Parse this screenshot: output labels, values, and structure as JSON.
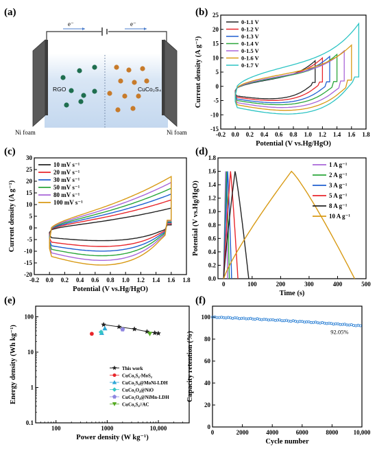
{
  "panels": {
    "a": {
      "label": "(a)",
      "electron_left": "e⁻",
      "electron_right": "e⁻",
      "left_electrode": "RGO",
      "right_electrode": "CuCo₂S₄",
      "left_foam": "Ni foam",
      "right_foam": "Ni foam",
      "colors": {
        "green": "#1f6e4f",
        "orange": "#c77b2b",
        "electrolyte": "#cfe0f3",
        "electrode": "#555555"
      }
    }
  },
  "chart_data": [
    {
      "id": "b",
      "label": "(b)",
      "type": "line",
      "xlabel": "Potential (V vs.Hg/HgO)",
      "ylabel": "Current density (A g⁻¹)",
      "xlim": [
        -0.2,
        1.8
      ],
      "ylim": [
        -15,
        25
      ],
      "xticks": [
        "-0.2",
        "0.0",
        "0.2",
        "0.4",
        "0.6",
        "0.8",
        "1.0",
        "1.2",
        "1.4",
        "1.6",
        "1.8"
      ],
      "yticks": [
        "-15",
        "-10",
        "-5",
        "0",
        "5",
        "10",
        "15",
        "20",
        "25"
      ],
      "legend_position": "top-left",
      "series": [
        {
          "name": "0-1.1 V",
          "color": "#222222",
          "vmax": 1.1,
          "top": 9.0,
          "bot": -4.4
        },
        {
          "name": "0-1.2 V",
          "color": "#e8262b",
          "vmax": 1.2,
          "top": 10.0,
          "bot": -5.0
        },
        {
          "name": "0-1.3 V",
          "color": "#1f5fd1",
          "vmax": 1.3,
          "top": 10.5,
          "bot": -5.8
        },
        {
          "name": "0-1.4 V",
          "color": "#2aa63a",
          "vmax": 1.4,
          "top": 11.2,
          "bot": -6.5
        },
        {
          "name": "0-1.5 V",
          "color": "#a865d8",
          "vmax": 1.5,
          "top": 12.5,
          "bot": -7.5
        },
        {
          "name": "0-1.6 V",
          "color": "#d89a14",
          "vmax": 1.6,
          "top": 14.5,
          "bot": -8.5
        },
        {
          "name": "0-1.7 V",
          "color": "#2cc4c4",
          "vmax": 1.7,
          "top": 22.0,
          "bot": -9.8
        }
      ]
    },
    {
      "id": "c",
      "label": "(c)",
      "type": "line",
      "xlabel": "Potential (V vs.Hg/HgO)",
      "ylabel": "Current density (A g⁻¹)",
      "xlim": [
        -0.2,
        1.8
      ],
      "ylim": [
        -20,
        30
      ],
      "xticks": [
        "-0.2",
        "0.0",
        "0.2",
        "0.4",
        "0.6",
        "0.8",
        "1.0",
        "1.2",
        "1.4",
        "1.6",
        "1.8"
      ],
      "yticks": [
        "-20",
        "-15",
        "-10",
        "-5",
        "0",
        "5",
        "10",
        "15",
        "20",
        "25",
        "30"
      ],
      "legend_position": "top-left",
      "series": [
        {
          "name": "10 mV s⁻¹",
          "color": "#222222",
          "vmax": 1.6,
          "top": 8.5,
          "bot": -5.5
        },
        {
          "name": "20 mV s⁻¹",
          "color": "#e8262b",
          "vmax": 1.6,
          "top": 12.0,
          "bot": -8.0
        },
        {
          "name": "30 mV s⁻¹",
          "color": "#1f5fd1",
          "vmax": 1.6,
          "top": 14.5,
          "bot": -10.0
        },
        {
          "name": "50 mV s⁻¹",
          "color": "#2aa63a",
          "vmax": 1.6,
          "top": 17.0,
          "bot": -12.0
        },
        {
          "name": "80 mV s⁻¹",
          "color": "#a865d8",
          "vmax": 1.6,
          "top": 19.5,
          "bot": -14.0
        },
        {
          "name": "100 mV s⁻¹",
          "color": "#d89a14",
          "vmax": 1.6,
          "top": 22.0,
          "bot": -16.0
        }
      ]
    },
    {
      "id": "d",
      "label": "(d)",
      "type": "line",
      "xlabel": "Time (s)",
      "ylabel": "Potential (V vs.Hg/HgO)",
      "xlim": [
        -20,
        500
      ],
      "ylim": [
        0.0,
        1.8
      ],
      "xticks": [
        "0",
        "100",
        "200",
        "300",
        "400",
        "500"
      ],
      "yticks": [
        "0.0",
        "0.2",
        "0.4",
        "0.6",
        "0.8",
        "1.0",
        "1.2",
        "1.4",
        "1.6",
        "1.8"
      ],
      "legend_position": "top-right",
      "series": [
        {
          "name": "1 A g⁻¹",
          "color": "#a865d8",
          "t_charge": 7,
          "t_end": 14
        },
        {
          "name": "2 A g⁻¹",
          "color": "#2aa63a",
          "t_charge": 10,
          "t_end": 20
        },
        {
          "name": "3 A g⁻¹",
          "color": "#1f5fd1",
          "t_charge": 14,
          "t_end": 28
        },
        {
          "name": "5 A g⁻¹",
          "color": "#e8262b",
          "t_charge": 24,
          "t_end": 50
        },
        {
          "name": "8 A g⁻¹",
          "color": "#222222",
          "t_charge": 40,
          "t_end": 88
        },
        {
          "name": "10 A g⁻¹",
          "color": "#d89a14",
          "t_charge": 238,
          "t_end": 460
        }
      ]
    },
    {
      "id": "e",
      "label": "(e)",
      "type": "scatter",
      "xlabel": "Power density (W kg⁻¹)",
      "ylabel": "Energy density (Wh kg⁻¹)",
      "xscale": "log",
      "yscale": "log",
      "xlim": [
        40,
        40000
      ],
      "ylim": [
        0.1,
        200
      ],
      "xticks": [
        {
          "v": 100,
          "t": "100"
        },
        {
          "v": 1000,
          "t": "1000"
        },
        {
          "v": 10000,
          "t": "10,000"
        }
      ],
      "yticks": [
        {
          "v": 0.1,
          "t": "0.1"
        },
        {
          "v": 1,
          "t": "1"
        },
        {
          "v": 10,
          "t": "10"
        },
        {
          "v": 100,
          "t": "100"
        }
      ],
      "legend_position": "center",
      "series": [
        {
          "name": "This work",
          "color": "#222222",
          "marker": "star",
          "line": true,
          "points": [
            [
              850,
              60
            ],
            [
              1700,
              52
            ],
            [
              3400,
              45
            ],
            [
              6000,
              38
            ],
            [
              8500,
              35
            ],
            [
              10000,
              34
            ]
          ]
        },
        {
          "name": "CuCo₂S₄-MoS₂",
          "color": "#e8262b",
          "marker": "circle",
          "points": [
            [
              500,
              33
            ]
          ]
        },
        {
          "name": "CuCo₂S₄@MoNi-LDH",
          "color": "#2aa6d6",
          "marker": "triangle",
          "points": [
            [
              900,
              47
            ],
            [
              780,
              35
            ]
          ]
        },
        {
          "name": "CuCo₂O₄@NiO",
          "color": "#35c6c6",
          "marker": "diamond",
          "points": [
            [
              760,
              37
            ]
          ]
        },
        {
          "name": "CuCo₂O₄@NiMn-LDH",
          "color": "#8f86e0",
          "marker": "pentagon",
          "points": [
            [
              2000,
              44
            ]
          ]
        },
        {
          "name": "CuCo₂S₄//AC",
          "color": "#55aa22",
          "marker": "triangle-down",
          "points": [
            [
              6800,
              33
            ]
          ]
        }
      ]
    },
    {
      "id": "f",
      "label": "(f)",
      "type": "scatter",
      "xlabel": "Cycle number",
      "ylabel": "Capacity retention (%)",
      "xlim": [
        0,
        10000
      ],
      "ylim": [
        0,
        110
      ],
      "xticks": [
        "0",
        "2000",
        "4000",
        "6000",
        "8000",
        "10,000"
      ],
      "yticks": [
        "0",
        "20",
        "40",
        "60",
        "80",
        "100"
      ],
      "annotation": "92.05%",
      "series": [
        {
          "name": "",
          "color": "#2a7fd4",
          "start": 100,
          "end": 92.05
        }
      ]
    }
  ]
}
